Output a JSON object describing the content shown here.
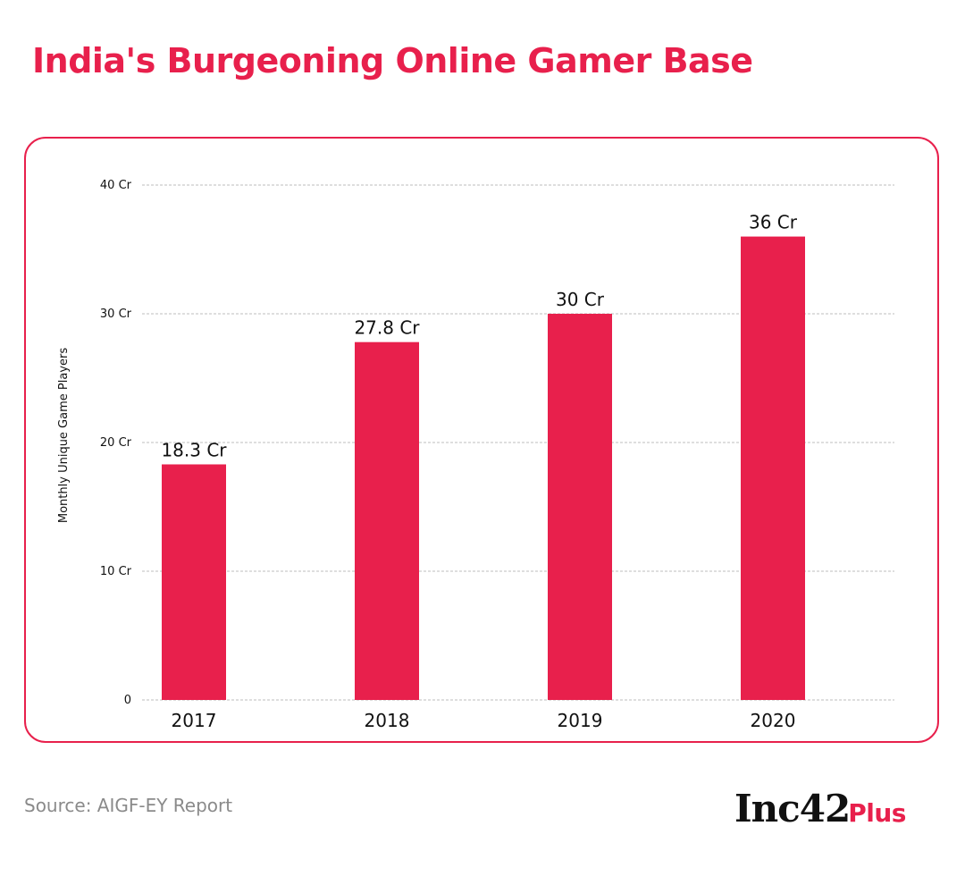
{
  "title": "India's Burgeoning Online Gamer Base",
  "source": "Source: AIGF-EY Report",
  "logo": {
    "main": "Inc42",
    "plus": "Plus"
  },
  "colors": {
    "accent": "#e8204c",
    "bar": "#e8204c",
    "grid": "#bdbdbd",
    "text": "#111111",
    "muted": "#8a8a8a"
  },
  "chart_data": {
    "type": "bar",
    "categories": [
      "2017",
      "2018",
      "2019",
      "2020"
    ],
    "values": [
      18.3,
      27.8,
      30,
      36
    ],
    "value_labels": [
      "18.3 Cr",
      "27.8 Cr",
      "30 Cr",
      "36 Cr"
    ],
    "yticks": [
      0,
      10,
      20,
      30,
      40
    ],
    "ytick_labels": [
      "0",
      "10 Cr",
      "20 Cr",
      "30 Cr",
      "40 Cr"
    ],
    "ylabel": "Monthly Unique Game Players",
    "xlabel": "",
    "ylim": [
      0,
      40
    ],
    "grid": true,
    "legend": "none"
  }
}
